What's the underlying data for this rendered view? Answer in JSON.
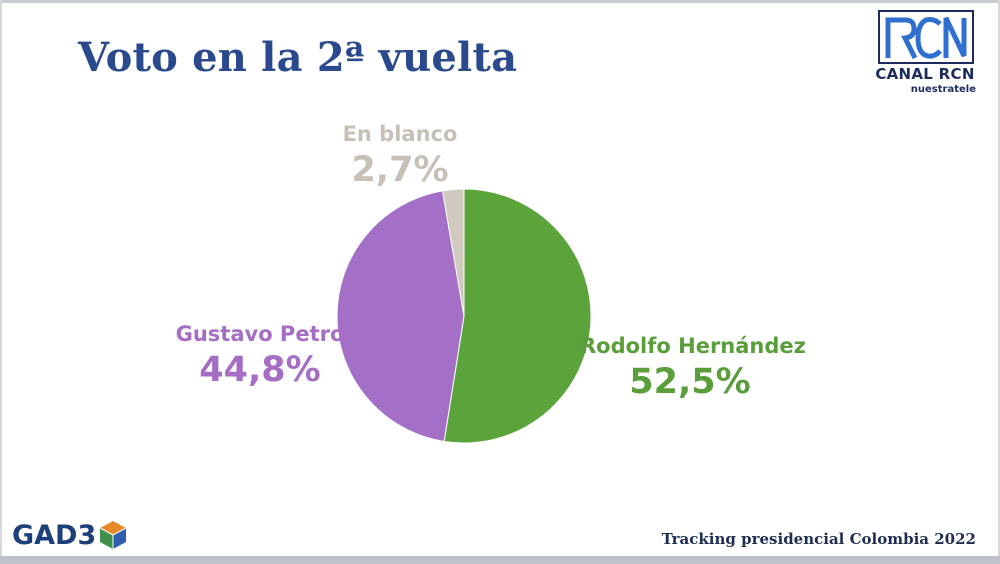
{
  "header": {
    "title": "Voto en la 2ª vuelta"
  },
  "brand": {
    "channel_logo": {
      "icon": "rcn-logo",
      "text": "CANAL RCN",
      "tagline": "nuestratele",
      "color": "#1d2c5c"
    },
    "pollster_logo": {
      "icon": "gad3-cube-logo",
      "text": "GAD3",
      "color": "#1d3f7a"
    }
  },
  "chart_data": {
    "type": "pie",
    "title": "Voto en la 2ª vuelta",
    "slices": [
      {
        "label": "Rodolfo Hernández",
        "value": 52.5,
        "value_label": "52,5%",
        "color": "#5ba43c"
      },
      {
        "label": "Gustavo Petro",
        "value": 44.8,
        "value_label": "44,8%",
        "color": "#a46fc6"
      },
      {
        "label": "En blanco",
        "value": 2.7,
        "value_label": "2,7%",
        "color": "#cfc9c0"
      }
    ],
    "start_angle_deg": 0,
    "direction": "clockwise",
    "legend": "none"
  },
  "footer": {
    "text": "Tracking presidencial Colombia 2022"
  }
}
